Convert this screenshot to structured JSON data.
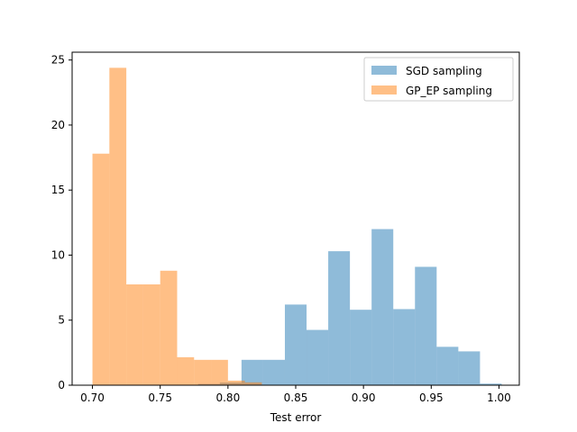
{
  "chart_data": {
    "type": "histogram",
    "title": "",
    "xlabel": "Test error",
    "ylabel": "",
    "xlim": [
      0.685,
      1.015
    ],
    "ylim": [
      0,
      25.6
    ],
    "xticks": [
      "0.70",
      "0.75",
      "0.80",
      "0.85",
      "0.90",
      "0.95",
      "1.00"
    ],
    "xtick_values": [
      0.7,
      0.75,
      0.8,
      0.85,
      0.9,
      0.95,
      1.0
    ],
    "yticks": [
      "0",
      "5",
      "10",
      "15",
      "20",
      "25"
    ],
    "ytick_values": [
      0,
      5,
      10,
      15,
      20,
      25
    ],
    "grid": false,
    "legend_position": "top-right",
    "series": [
      {
        "name": "SGD sampling",
        "color": "#1f77b4",
        "opacity": 0.5,
        "bins": [
          {
            "x0": 0.778,
            "x1": 0.794,
            "value": 0.1
          },
          {
            "x0": 0.794,
            "x1": 0.81,
            "value": 0.2
          },
          {
            "x0": 0.81,
            "x1": 0.826,
            "value": 1.95
          },
          {
            "x0": 0.826,
            "x1": 0.842,
            "value": 1.95
          },
          {
            "x0": 0.842,
            "x1": 0.858,
            "value": 6.2
          },
          {
            "x0": 0.858,
            "x1": 0.874,
            "value": 4.25
          },
          {
            "x0": 0.874,
            "x1": 0.89,
            "value": 10.3
          },
          {
            "x0": 0.89,
            "x1": 0.906,
            "value": 5.8
          },
          {
            "x0": 0.906,
            "x1": 0.922,
            "value": 12.0
          },
          {
            "x0": 0.922,
            "x1": 0.938,
            "value": 5.85
          },
          {
            "x0": 0.938,
            "x1": 0.954,
            "value": 9.1
          },
          {
            "x0": 0.954,
            "x1": 0.97,
            "value": 2.95
          },
          {
            "x0": 0.97,
            "x1": 0.986,
            "value": 2.6
          },
          {
            "x0": 0.986,
            "x1": 1.002,
            "value": 0.12
          }
        ]
      },
      {
        "name": "GP_EP sampling",
        "color": "#ff7f0e",
        "opacity": 0.5,
        "bins": [
          {
            "x0": 0.7,
            "x1": 0.7125,
            "value": 17.8
          },
          {
            "x0": 0.7125,
            "x1": 0.725,
            "value": 24.4
          },
          {
            "x0": 0.725,
            "x1": 0.7375,
            "value": 7.75
          },
          {
            "x0": 0.7375,
            "x1": 0.75,
            "value": 7.75
          },
          {
            "x0": 0.75,
            "x1": 0.7625,
            "value": 8.8
          },
          {
            "x0": 0.7625,
            "x1": 0.775,
            "value": 2.15
          },
          {
            "x0": 0.775,
            "x1": 0.7875,
            "value": 1.95
          },
          {
            "x0": 0.7875,
            "x1": 0.8,
            "value": 1.95
          },
          {
            "x0": 0.8,
            "x1": 0.8125,
            "value": 0.35
          },
          {
            "x0": 0.8125,
            "x1": 0.825,
            "value": 0.22
          }
        ]
      }
    ]
  }
}
